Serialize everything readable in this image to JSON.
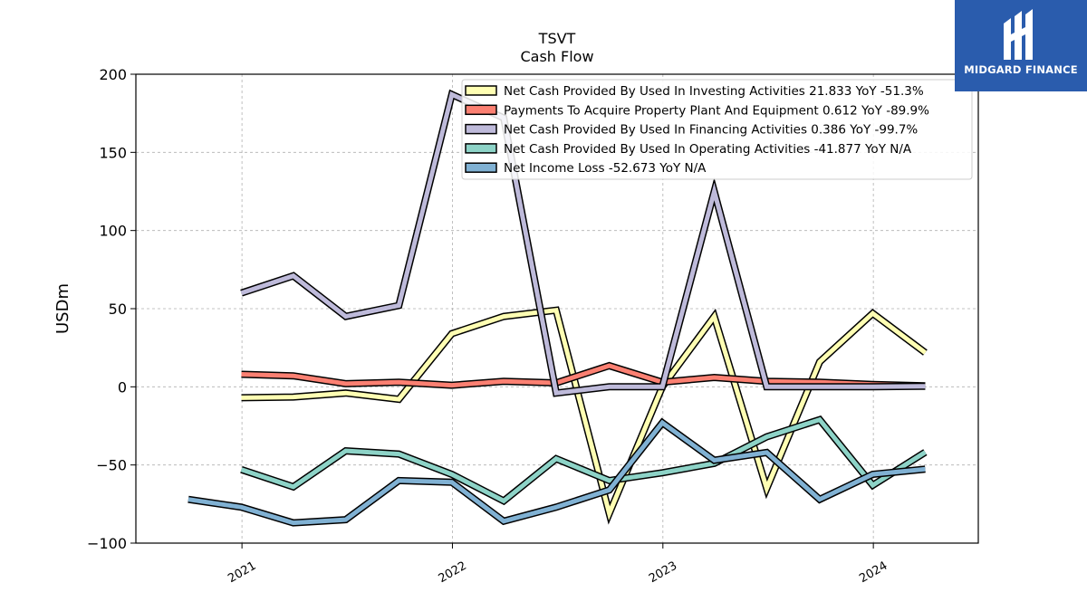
{
  "brand": {
    "name": "MIDGARD FINANCE",
    "logo_icon": "midgard-logo-icon",
    "bg_color": "#2a5cad"
  },
  "chart_data": {
    "type": "line",
    "title": "TSVT",
    "subtitle": "Cash Flow",
    "ylabel": "USDm",
    "xlabel": "",
    "ylim": [
      -100,
      200
    ],
    "yticks": [
      -100,
      -50,
      0,
      50,
      100,
      150,
      200
    ],
    "ytick_labels": [
      "−100",
      "−50",
      "0",
      "50",
      "100",
      "150",
      "200"
    ],
    "xlim": [
      "2020-07-01",
      "2024-07-01"
    ],
    "xticks": [
      "2021-01-01",
      "2022-01-01",
      "2023-01-01",
      "2024-01-01"
    ],
    "xtick_labels": [
      "2021",
      "2022",
      "2023",
      "2024"
    ],
    "grid": true,
    "legend_position": "top-right",
    "series": [
      {
        "name": "Net Cash Provided By Used In Investing Activities",
        "legend": "Net Cash Provided By Used In Investing Activities  21.833 YoY -51.3%",
        "color": "#ffffb3",
        "x": [
          "2020-12-31",
          "2021-03-31",
          "2021-06-30",
          "2021-09-30",
          "2021-12-31",
          "2022-03-31",
          "2022-06-30",
          "2022-09-30",
          "2022-12-31",
          "2023-03-31",
          "2023-06-30",
          "2023-09-30",
          "2023-12-31",
          "2024-03-31"
        ],
        "values": [
          -7,
          -6.5,
          -4,
          -8,
          34,
          45,
          49,
          -81,
          0,
          45,
          -65,
          16,
          47,
          21.833
        ]
      },
      {
        "name": "Payments To Acquire Property Plant And Equipment",
        "legend": "Payments To Acquire Property Plant And Equipment  0.612 YoY -89.9%",
        "color": "#fb8072",
        "x": [
          "2020-12-31",
          "2021-03-31",
          "2021-06-30",
          "2021-09-30",
          "2021-12-31",
          "2022-03-31",
          "2022-06-30",
          "2022-09-30",
          "2022-12-31",
          "2023-03-31",
          "2023-06-30",
          "2023-09-30",
          "2023-12-31",
          "2024-03-31"
        ],
        "values": [
          8,
          7,
          2,
          3,
          1,
          3.5,
          2.5,
          13.5,
          3,
          6,
          3.5,
          3,
          1.5,
          0.612
        ]
      },
      {
        "name": "Net Cash Provided By Used In Financing Activities",
        "legend": "Net Cash Provided By Used In Financing Activities  0.386 YoY -99.7%",
        "color": "#bebada",
        "x": [
          "2020-12-31",
          "2021-03-31",
          "2021-06-30",
          "2021-09-30",
          "2021-12-31",
          "2022-03-31",
          "2022-06-30",
          "2022-09-30",
          "2022-12-31",
          "2023-03-31",
          "2023-06-30",
          "2023-09-30",
          "2023-12-31",
          "2024-03-31"
        ],
        "values": [
          60,
          71,
          45,
          52,
          187,
          172,
          -4,
          0,
          0,
          125,
          0,
          0,
          0,
          0.386
        ]
      },
      {
        "name": "Net Cash Provided By Used In Operating Activities",
        "legend": "Net Cash Provided By Used In Operating Activities  -41.877 YoY N/A",
        "color": "#8dd3c7",
        "x": [
          "2020-12-31",
          "2021-03-31",
          "2021-06-30",
          "2021-09-30",
          "2021-12-31",
          "2022-03-31",
          "2022-06-30",
          "2022-09-30",
          "2022-12-31",
          "2023-03-31",
          "2023-06-30",
          "2023-09-30",
          "2023-12-31",
          "2024-03-31"
        ],
        "values": [
          -53,
          -64,
          -41,
          -43,
          -56,
          -73,
          -46,
          -60,
          -55,
          -49,
          -32,
          -21,
          -63,
          -41.877
        ]
      },
      {
        "name": "Net Income Loss",
        "legend": "Net Income Loss  -52.673 YoY N/A",
        "color": "#80b1d3",
        "x": [
          "2020-09-30",
          "2020-12-31",
          "2021-03-31",
          "2021-06-30",
          "2021-09-30",
          "2021-12-31",
          "2022-03-31",
          "2022-06-30",
          "2022-09-30",
          "2022-12-31",
          "2023-03-31",
          "2023-06-30",
          "2023-09-30",
          "2023-12-31",
          "2024-03-31"
        ],
        "values": [
          -72,
          -77,
          -87,
          -85,
          -60,
          -61,
          -86,
          -77,
          -66,
          -23,
          -47,
          -42,
          -72,
          -56,
          -52.673
        ]
      }
    ]
  }
}
